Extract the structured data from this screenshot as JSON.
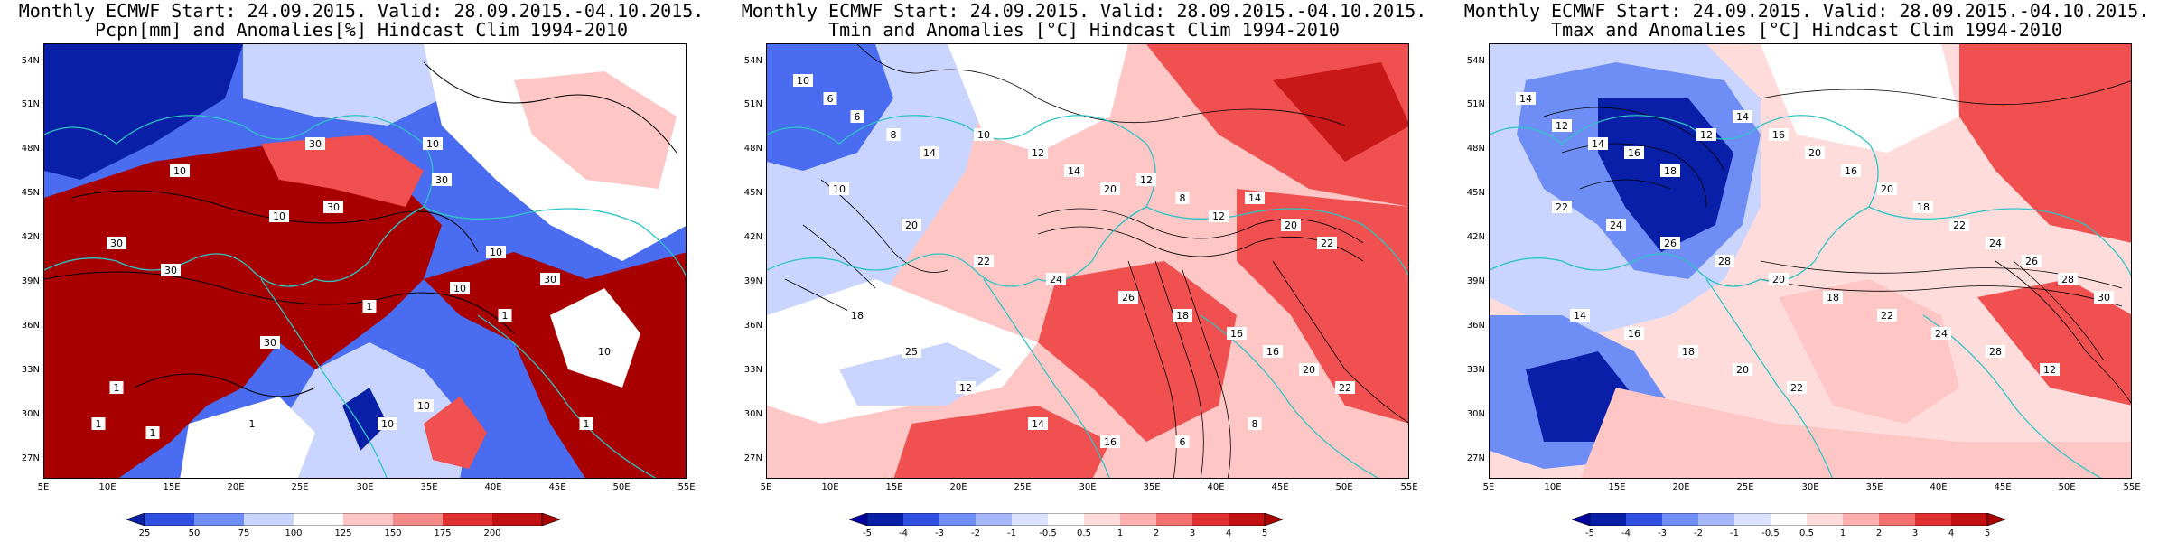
{
  "colors": {
    "blue_dark": "#0a1fa8",
    "blue_mid": "#4a6cf0",
    "blue_light": "#c9d4ff",
    "white": "#ffffff",
    "red_light": "#ffc6c6",
    "red_mid": "#f05050",
    "red_dark": "#a80000",
    "coast": "#2ec4c4",
    "contour": "#000000"
  },
  "panels": [
    {
      "title_line1": "Monthly ECMWF Start: 24.09.2015. Valid: 28.09.2015.-04.10.2015.",
      "title_line2": "Pcpn[mm] and Anomalies[%] Hindcast Clim 1994-2010",
      "lat_labels": [
        "54N",
        "51N",
        "48N",
        "45N",
        "42N",
        "39N",
        "36N",
        "33N",
        "30N",
        "27N"
      ],
      "lon_labels": [
        "5E",
        "10E",
        "15E",
        "20E",
        "25E",
        "30E",
        "35E",
        "40E",
        "45E",
        "50E",
        "55E"
      ],
      "colorbar": [
        "25",
        "50",
        "75",
        "100",
        "125",
        "150",
        "175",
        "200"
      ],
      "contour_labels": [
        "10",
        "10",
        "10",
        "30",
        "30",
        "30",
        "30",
        "30",
        "10",
        "1",
        "1",
        "10",
        "30",
        "10",
        "1",
        "30",
        "1",
        "1",
        "10",
        "1",
        "10",
        "1"
      ]
    },
    {
      "title_line1": "Monthly ECMWF Start: 24.09.2015. Valid: 28.09.2015.-04.10.2015.",
      "title_line2": "Tmin and Anomalies [°C] Hindcast Clim 1994-2010",
      "lat_labels": [
        "54N",
        "51N",
        "48N",
        "45N",
        "42N",
        "39N",
        "36N",
        "33N",
        "30N",
        "27N"
      ],
      "lon_labels": [
        "5E",
        "10E",
        "15E",
        "20E",
        "25E",
        "30E",
        "35E",
        "40E",
        "45E",
        "50E",
        "55E"
      ],
      "colorbar": [
        "-5",
        "-4",
        "-3",
        "-2",
        "-1",
        "-0.5",
        "0.5",
        "1",
        "2",
        "3",
        "4",
        "5"
      ],
      "contour_labels": [
        "10",
        "6",
        "6",
        "8",
        "14",
        "10",
        "12",
        "14",
        "20",
        "12",
        "8",
        "12",
        "14",
        "20",
        "22",
        "10",
        "20",
        "22",
        "24",
        "26",
        "18",
        "16",
        "16",
        "20",
        "22",
        "18",
        "25",
        "12",
        "14",
        "16",
        "6",
        "8"
      ]
    },
    {
      "title_line1": "Monthly ECMWF Start: 24.09.2015. Valid: 28.09.2015.-04.10.2015.",
      "title_line2": "Tmax and Anomalies [°C] Hindcast Clim 1994-2010",
      "lat_labels": [
        "54N",
        "51N",
        "48N",
        "45N",
        "42N",
        "39N",
        "36N",
        "33N",
        "30N",
        "27N"
      ],
      "lon_labels": [
        "5E",
        "10E",
        "15E",
        "20E",
        "25E",
        "30E",
        "35E",
        "40E",
        "45E",
        "50E",
        "55E"
      ],
      "colorbar": [
        "-5",
        "-4",
        "-3",
        "-2",
        "-1",
        "-0.5",
        "0.5",
        "1",
        "2",
        "3",
        "4",
        "5"
      ],
      "contour_labels": [
        "14",
        "12",
        "14",
        "16",
        "18",
        "12",
        "14",
        "16",
        "20",
        "16",
        "20",
        "18",
        "22",
        "24",
        "26",
        "28",
        "30",
        "22",
        "24",
        "26",
        "28",
        "20",
        "18",
        "22",
        "24",
        "28",
        "12",
        "14",
        "16",
        "18",
        "20",
        "22"
      ]
    }
  ]
}
